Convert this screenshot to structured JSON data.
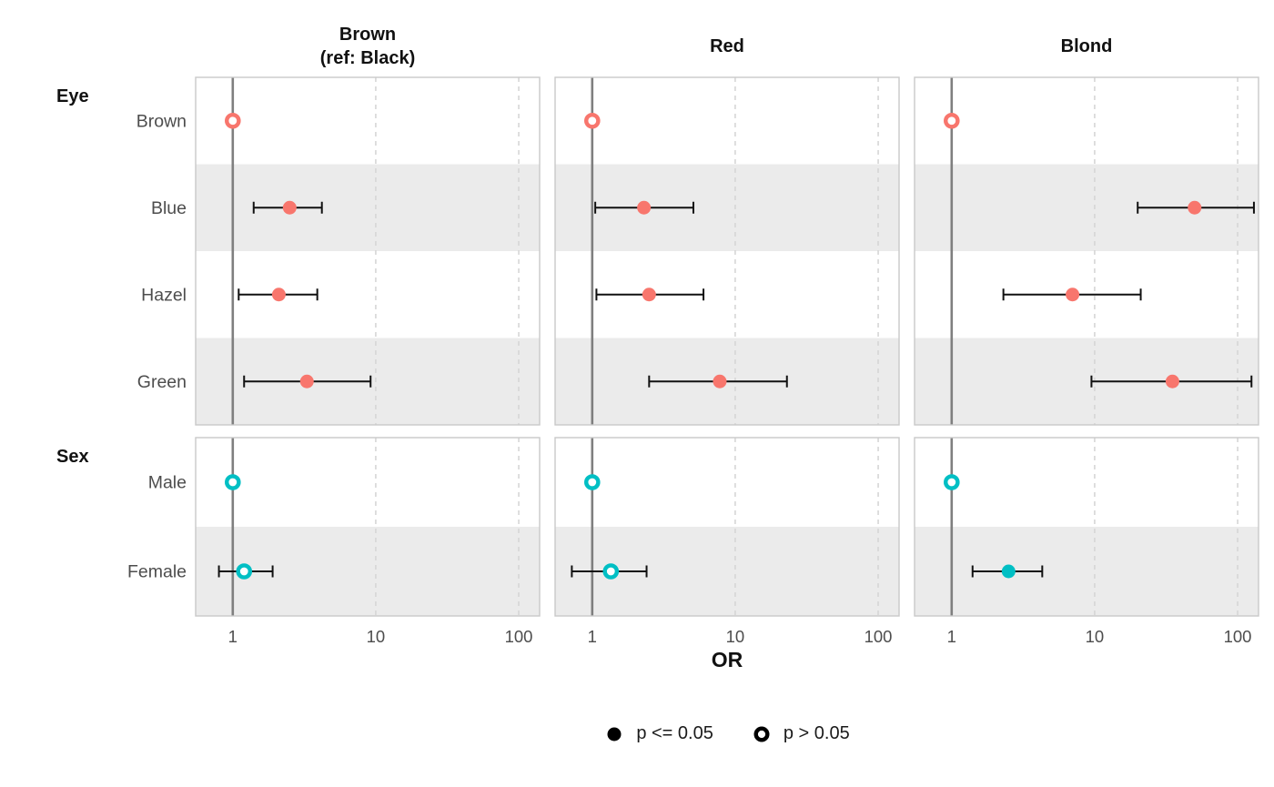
{
  "chart_data": {
    "type": "forest-dot-whisker",
    "x_scale": "log10",
    "xlabel": "OR",
    "xticks": [
      1,
      10,
      100
    ],
    "xtick_labels": [
      "1",
      "10",
      "100"
    ],
    "xrange": [
      0.55,
      140
    ],
    "grid": "dashed-at-ticks",
    "reference_line_at": 1,
    "point_colors": {
      "Eye": "#F8766D",
      "Sex": "#00BFC4"
    },
    "style_colors": {
      "stripe": "#EBEBEB",
      "panel_border": "#C9C9C9",
      "reference_line": "#7F7F7F",
      "gridline": "#D6D6D6",
      "whisker": "#111111",
      "tick_text": "#4D4D4D"
    },
    "row_groups": [
      {
        "label": "Eye",
        "rows": [
          "Brown",
          "Blue",
          "Hazel",
          "Green"
        ]
      },
      {
        "label": "Sex",
        "rows": [
          "Male",
          "Female"
        ]
      }
    ],
    "legend": [
      {
        "label": "p <= 0.05",
        "filled": true
      },
      {
        "label": "p > 0.05",
        "filled": false
      }
    ],
    "panels": [
      {
        "title_lines": [
          "Brown",
          "(ref: Black)"
        ],
        "estimates": {
          "Eye": [
            {
              "row": "Brown",
              "or": 1.0,
              "lo": null,
              "hi": null,
              "significant": false
            },
            {
              "row": "Blue",
              "or": 2.5,
              "lo": 1.4,
              "hi": 4.2,
              "significant": true
            },
            {
              "row": "Hazel",
              "or": 2.1,
              "lo": 1.1,
              "hi": 3.9,
              "significant": true
            },
            {
              "row": "Green",
              "or": 3.3,
              "lo": 1.2,
              "hi": 9.2,
              "significant": true
            }
          ],
          "Sex": [
            {
              "row": "Male",
              "or": 1.0,
              "lo": null,
              "hi": null,
              "significant": false
            },
            {
              "row": "Female",
              "or": 1.2,
              "lo": 0.8,
              "hi": 1.9,
              "significant": false
            }
          ]
        }
      },
      {
        "title_lines": [
          "Red"
        ],
        "estimates": {
          "Eye": [
            {
              "row": "Brown",
              "or": 1.0,
              "lo": null,
              "hi": null,
              "significant": false
            },
            {
              "row": "Blue",
              "or": 2.3,
              "lo": 1.05,
              "hi": 5.1,
              "significant": true
            },
            {
              "row": "Hazel",
              "or": 2.5,
              "lo": 1.07,
              "hi": 6.0,
              "significant": true
            },
            {
              "row": "Green",
              "or": 7.8,
              "lo": 2.5,
              "hi": 23.0,
              "significant": true
            }
          ],
          "Sex": [
            {
              "row": "Male",
              "or": 1.0,
              "lo": null,
              "hi": null,
              "significant": false
            },
            {
              "row": "Female",
              "or": 1.35,
              "lo": 0.72,
              "hi": 2.4,
              "significant": false
            }
          ]
        }
      },
      {
        "title_lines": [
          "Blond"
        ],
        "estimates": {
          "Eye": [
            {
              "row": "Brown",
              "or": 1.0,
              "lo": null,
              "hi": null,
              "significant": false
            },
            {
              "row": "Blue",
              "or": 50.0,
              "lo": 20.0,
              "hi": 130.0,
              "significant": true
            },
            {
              "row": "Hazel",
              "or": 7.0,
              "lo": 2.3,
              "hi": 21.0,
              "significant": true
            },
            {
              "row": "Green",
              "or": 35.0,
              "lo": 9.5,
              "hi": 125.0,
              "significant": true
            }
          ],
          "Sex": [
            {
              "row": "Male",
              "or": 1.0,
              "lo": null,
              "hi": null,
              "significant": false
            },
            {
              "row": "Female",
              "or": 2.5,
              "lo": 1.4,
              "hi": 4.3,
              "significant": true
            }
          ]
        }
      }
    ]
  }
}
